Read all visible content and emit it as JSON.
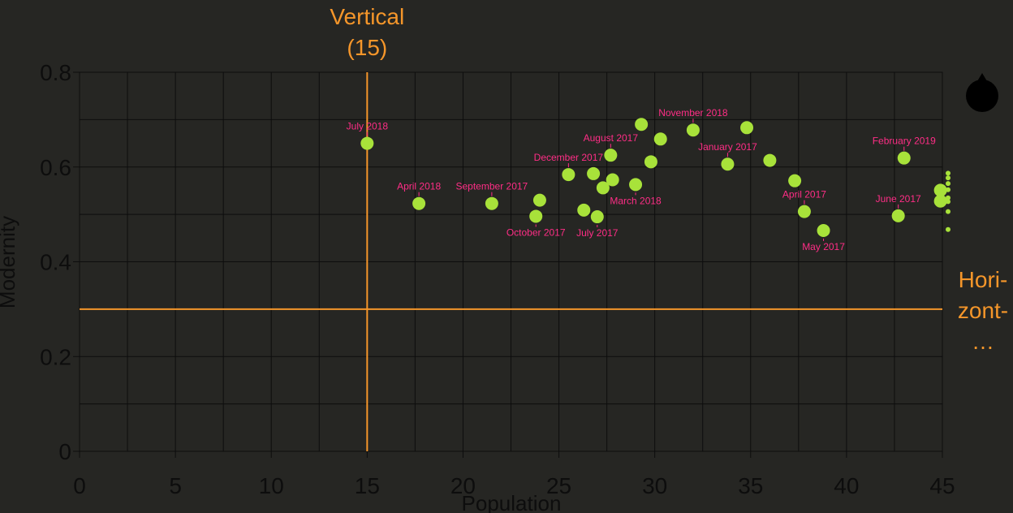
{
  "chart_data": {
    "type": "scatter",
    "xlabel": "Population",
    "ylabel": "Modernity",
    "xlim": [
      0,
      45
    ],
    "ylim": [
      0,
      0.8
    ],
    "x_ticks": [
      "0",
      "5",
      "10",
      "15",
      "20",
      "25",
      "30",
      "35",
      "40",
      "45"
    ],
    "y_ticks": [
      "0",
      "0.2",
      "0.4",
      "0.6",
      "0.8"
    ],
    "grid": true,
    "reference_lines": {
      "vertical": {
        "value": 15,
        "label_lines": [
          "Vertical",
          "(15)"
        ]
      },
      "horizontal": {
        "value": 0.3,
        "label_lines": [
          "Hori-",
          "zont-",
          "…"
        ]
      }
    },
    "points": [
      {
        "x": 15.0,
        "y": 0.65,
        "label": "July 2018",
        "label_pos": "above"
      },
      {
        "x": 17.7,
        "y": 0.523,
        "label": "April 2018",
        "label_pos": "above"
      },
      {
        "x": 21.5,
        "y": 0.523,
        "label": "September 2017",
        "label_pos": "above"
      },
      {
        "x": 23.8,
        "y": 0.496,
        "label": "October 2017",
        "label_pos": "below"
      },
      {
        "x": 24.0,
        "y": 0.53,
        "label": "",
        "label_pos": ""
      },
      {
        "x": 25.5,
        "y": 0.584,
        "label": "December 2017",
        "label_pos": "above"
      },
      {
        "x": 26.3,
        "y": 0.509,
        "label": "",
        "label_pos": ""
      },
      {
        "x": 26.8,
        "y": 0.586,
        "label": "",
        "label_pos": ""
      },
      {
        "x": 27.0,
        "y": 0.495,
        "label": "July 2017",
        "label_pos": "below"
      },
      {
        "x": 27.3,
        "y": 0.556,
        "label": "",
        "label_pos": ""
      },
      {
        "x": 27.7,
        "y": 0.625,
        "label": "August 2017",
        "label_pos": "above"
      },
      {
        "x": 27.8,
        "y": 0.573,
        "label": "",
        "label_pos": ""
      },
      {
        "x": 29.0,
        "y": 0.563,
        "label": "March 2018",
        "label_pos": "below"
      },
      {
        "x": 29.3,
        "y": 0.69,
        "label": "",
        "label_pos": ""
      },
      {
        "x": 29.8,
        "y": 0.611,
        "label": "",
        "label_pos": ""
      },
      {
        "x": 30.3,
        "y": 0.659,
        "label": "",
        "label_pos": ""
      },
      {
        "x": 32.0,
        "y": 0.678,
        "label": "November 2018",
        "label_pos": "above"
      },
      {
        "x": 33.8,
        "y": 0.606,
        "label": "January 2017",
        "label_pos": "above"
      },
      {
        "x": 34.8,
        "y": 0.683,
        "label": "",
        "label_pos": ""
      },
      {
        "x": 36.0,
        "y": 0.614,
        "label": "",
        "label_pos": ""
      },
      {
        "x": 37.3,
        "y": 0.571,
        "label": "",
        "label_pos": ""
      },
      {
        "x": 37.8,
        "y": 0.506,
        "label": "April 2017",
        "label_pos": "above"
      },
      {
        "x": 38.8,
        "y": 0.466,
        "label": "May 2017",
        "label_pos": "below"
      },
      {
        "x": 42.7,
        "y": 0.497,
        "label": "June 2017",
        "label_pos": "above"
      },
      {
        "x": 43.0,
        "y": 0.619,
        "label": "February 2019",
        "label_pos": "above"
      },
      {
        "x": 44.9,
        "y": 0.528,
        "label": "",
        "label_pos": ""
      },
      {
        "x": 44.9,
        "y": 0.551,
        "label": "",
        "label_pos": ""
      }
    ],
    "overflow_marker_y": [
      0.587,
      0.577,
      0.565,
      0.552,
      0.535,
      0.527,
      0.506,
      0.468
    ],
    "colors": {
      "background": "#262623",
      "point": "#a8e23a",
      "point_label": "#ff2d86",
      "reference": "#f5962a",
      "grid": "#0d0d0d",
      "text": "#0d0d0d",
      "handle": "#000000"
    },
    "icons": {
      "handle": "round-drag-handle"
    }
  }
}
